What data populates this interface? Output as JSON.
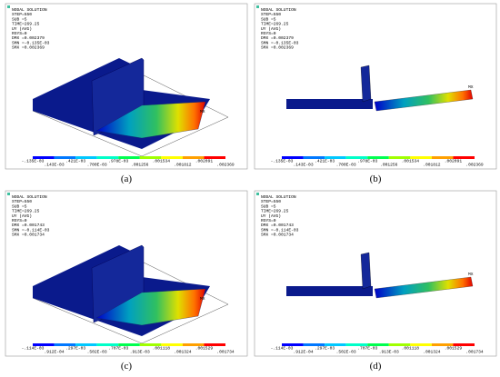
{
  "panels": [
    {
      "caption": "(a)",
      "lines": [
        "NODAL SOLUTION",
        "STEP=550",
        "SUB =5",
        "TIME=269.25",
        "UY       (AVG)",
        "RSYS=0",
        "DMX =0.002379",
        "SMN =-0.135E-03",
        "SMX =0.002369"
      ],
      "node_label": "MX",
      "colorbar": [
        "-.135E-03",
        ".143E-03",
        ".421E-03",
        ".700E-03",
        ".978E-03",
        ".001256",
        ".001534",
        ".001812",
        ".002091",
        ".002369"
      ]
    },
    {
      "caption": "(b)",
      "lines": [
        "NODAL SOLUTION",
        "STEP=550",
        "SUB =5",
        "TIME=269.25",
        "UY       (AVG)",
        "RSYS=0",
        "DMX =0.002379",
        "SMN =-0.135E-03",
        "SMX =0.002369"
      ],
      "node_label": "MX",
      "colorbar": [
        "-.135E-03",
        ".143E-03",
        ".421E-03",
        ".700E-03",
        ".978E-03",
        ".001256",
        ".001534",
        ".001812",
        ".002091",
        ".002369"
      ]
    },
    {
      "caption": "(c)",
      "lines": [
        "NODAL SOLUTION",
        "STEP=550",
        "SUB =5",
        "TIME=269.25",
        "UY       (AVG)",
        "RSYS=0",
        "DMX =0.001743",
        "SMN =-0.114E-03",
        "SMX =0.001734"
      ],
      "node_label": "MX",
      "colorbar": [
        "-.114E-03",
        ".912E-04",
        ".297E-03",
        ".502E-03",
        ".707E-03",
        ".913E-03",
        ".001118",
        ".001324",
        ".001529",
        ".001734"
      ]
    },
    {
      "caption": "(d)",
      "lines": [
        "NODAL SOLUTION",
        "STEP=550",
        "SUB =5",
        "TIME=269.25",
        "UY       (AVG)",
        "RSYS=0",
        "DMX =0.001743",
        "SMN =-0.114E-03",
        "SMX =0.001734"
      ],
      "node_label": "MX",
      "colorbar": [
        "-.114E-03",
        ".912E-04",
        ".297E-03",
        ".502E-03",
        ".707E-03",
        ".913E-03",
        ".001118",
        ".001324",
        ".001529",
        ".001734"
      ]
    }
  ]
}
